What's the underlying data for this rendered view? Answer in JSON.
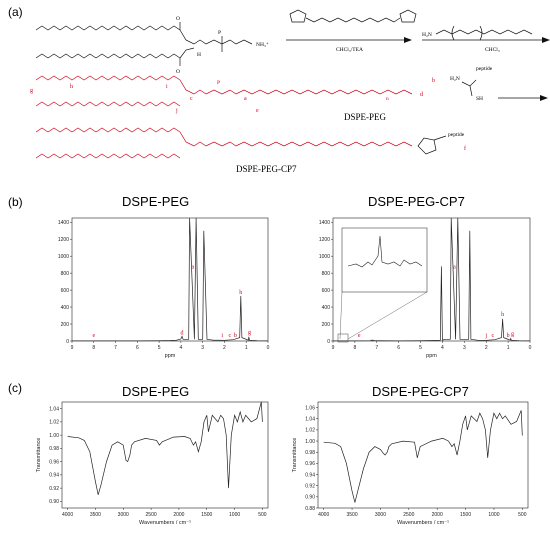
{
  "panels": {
    "a": "(a)",
    "b": "(b)",
    "c": "(c)"
  },
  "scheme": {
    "reagent_1": "CHCl₃/TEA",
    "reagent_2": "CHCl₃",
    "ammonium": "NH₃⁺",
    "h2n": "H₂N",
    "peptide": "peptide",
    "sh": "SH",
    "compound_1": "DSPE-PEG",
    "compound_2": "DSPE-PEG-CP7",
    "subscript_n": "n",
    "atom_labels": [
      "a",
      "b",
      "c",
      "d",
      "e",
      "f",
      "g",
      "h",
      "i",
      "j"
    ]
  },
  "nmr": {
    "left_title": "DSPE-PEG",
    "right_title": "DSPE-PEG-CP7",
    "xlabel": "ppm",
    "x_ticks": [
      "9",
      "8",
      "7",
      "6",
      "5",
      "4",
      "3",
      "2",
      "1",
      "0"
    ],
    "y_ticks": [
      "0",
      "200",
      "400",
      "600",
      "800",
      "1000",
      "1200",
      "1400"
    ],
    "left_peak_labels": [
      "a",
      "h",
      "d",
      "e",
      "i",
      "c",
      "b",
      "g"
    ],
    "right_peak_labels": [
      "a",
      "h",
      "e",
      "j",
      "c",
      "b",
      "g"
    ]
  },
  "ftir": {
    "left_title": "DSPE-PEG",
    "right_title": "DSPE-PEG-CP7",
    "xlabel": "Wavenumbers / cm⁻¹",
    "ylabel": "Transmittance",
    "x_ticks": [
      "4000",
      "3500",
      "3000",
      "2500",
      "2000",
      "1500",
      "1000",
      "500"
    ],
    "left_y_ticks": [
      "0.90",
      "0.92",
      "0.94",
      "0.96",
      "0.98",
      "1.00",
      "1.02",
      "1.04"
    ],
    "right_y_ticks": [
      "0.88",
      "0.90",
      "0.92",
      "0.94",
      "0.96",
      "0.98",
      "1.00",
      "1.02",
      "1.04",
      "1.06"
    ]
  },
  "chart_data": [
    {
      "type": "line",
      "title": "DSPE-PEG",
      "xlabel": "ppm",
      "xlim": [
        9,
        0
      ],
      "ylim": [
        0,
        1450
      ],
      "x": [
        9,
        8,
        7,
        6,
        5,
        4.5,
        4.2,
        4.0,
        3.95,
        3.9,
        3.64,
        3.6,
        3.38,
        3.3,
        3.2,
        3.0,
        2.95,
        2.8,
        2.5,
        2.2,
        2.0,
        1.6,
        1.3,
        1.25,
        1.2,
        0.9,
        0.88,
        0.85,
        0.5,
        0
      ],
      "y": [
        2,
        2,
        2,
        2,
        4,
        6,
        10,
        25,
        55,
        20,
        20,
        1450,
        20,
        1450,
        20,
        20,
        1300,
        20,
        10,
        10,
        8,
        15,
        40,
        530,
        40,
        10,
        50,
        10,
        4,
        2
      ]
    },
    {
      "type": "line",
      "title": "DSPE-PEG-CP7",
      "xlabel": "ppm",
      "xlim": [
        9,
        0
      ],
      "ylim": [
        0,
        1450
      ],
      "x": [
        9,
        8,
        7.3,
        7.2,
        7.1,
        6,
        5,
        4.5,
        4.1,
        4.05,
        4.0,
        3.9,
        3.64,
        3.6,
        3.4,
        3.3,
        3.2,
        3.0,
        2.8,
        2.75,
        2.7,
        2.4,
        2.0,
        1.6,
        1.3,
        1.25,
        1.2,
        0.9,
        0.88,
        0.85,
        0.5,
        0
      ],
      "y": [
        2,
        2,
        4,
        12,
        4,
        2,
        4,
        6,
        10,
        880,
        10,
        20,
        20,
        1450,
        20,
        1450,
        20,
        20,
        20,
        1300,
        20,
        10,
        8,
        15,
        40,
        260,
        40,
        10,
        30,
        10,
        4,
        2
      ]
    },
    {
      "type": "line",
      "title": "DSPE-PEG",
      "xlabel": "Wavenumbers / cm⁻¹",
      "ylabel": "Transmittance",
      "xlim": [
        4100,
        400
      ],
      "ylim": [
        0.89,
        1.05
      ],
      "x": [
        4000,
        3800,
        3700,
        3600,
        3500,
        3450,
        3400,
        3300,
        3200,
        3100,
        3000,
        2950,
        2920,
        2880,
        2850,
        2800,
        2600,
        2400,
        2350,
        2300,
        2100,
        1900,
        1800,
        1740,
        1700,
        1650,
        1600,
        1550,
        1500,
        1470,
        1400,
        1350,
        1300,
        1250,
        1200,
        1150,
        1110,
        1060,
        1000,
        950,
        900,
        850,
        800,
        700,
        600,
        520,
        500
      ],
      "y": [
        0.998,
        0.996,
        0.992,
        0.975,
        0.93,
        0.91,
        0.925,
        0.96,
        0.985,
        0.99,
        0.985,
        0.962,
        0.96,
        0.97,
        0.985,
        0.99,
        0.995,
        0.992,
        0.985,
        0.99,
        0.997,
        0.998,
        0.995,
        0.985,
        0.99,
        0.975,
        0.99,
        1.02,
        1.03,
        1.005,
        1.03,
        1.025,
        1.02,
        1.03,
        1.025,
        1.0,
        0.92,
        1.0,
        1.03,
        1.02,
        1.035,
        1.02,
        1.03,
        1.02,
        1.025,
        1.05,
        1.02
      ]
    },
    {
      "type": "line",
      "title": "DSPE-PEG-CP7",
      "xlabel": "Wavenumbers / cm⁻¹",
      "ylabel": "Transmittance",
      "xlim": [
        4100,
        400
      ],
      "ylim": [
        0.88,
        1.07
      ],
      "x": [
        4000,
        3800,
        3700,
        3600,
        3500,
        3450,
        3400,
        3300,
        3200,
        3100,
        3000,
        2950,
        2920,
        2880,
        2850,
        2800,
        2600,
        2400,
        2350,
        2300,
        2100,
        1900,
        1800,
        1740,
        1700,
        1650,
        1600,
        1550,
        1500,
        1470,
        1400,
        1350,
        1300,
        1250,
        1200,
        1150,
        1110,
        1060,
        1000,
        950,
        900,
        850,
        800,
        700,
        600,
        520,
        500
      ],
      "y": [
        0.998,
        0.996,
        0.99,
        0.96,
        0.91,
        0.89,
        0.91,
        0.95,
        0.98,
        0.99,
        0.985,
        0.978,
        0.975,
        0.98,
        0.99,
        0.995,
        1.0,
        0.998,
        0.97,
        0.99,
        1.0,
        1.005,
        1.0,
        0.99,
        0.995,
        0.975,
        1.0,
        1.03,
        1.045,
        1.02,
        1.045,
        1.04,
        1.035,
        1.05,
        1.04,
        1.02,
        0.97,
        1.02,
        1.05,
        1.04,
        1.05,
        1.04,
        1.045,
        1.03,
        1.035,
        1.055,
        1.01
      ]
    }
  ]
}
